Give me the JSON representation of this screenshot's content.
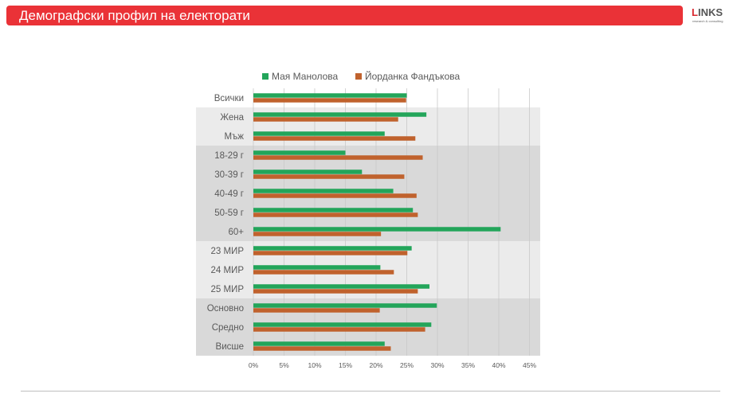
{
  "header": {
    "title": "Демографски профил на електорати"
  },
  "logo": {
    "brand_prefix": "L",
    "brand_rest": "INKS",
    "tagline": "research & consulting"
  },
  "colors": {
    "header": "#ea3237",
    "series_1": "#23a55a",
    "series_2": "#c0622d",
    "band_light": "#ebebeb",
    "band_dark": "#d9d9d9"
  },
  "chart_data": {
    "type": "bar",
    "orientation": "horizontal",
    "categories": [
      "Всички",
      "Жена",
      "Мъж",
      "18-29 г",
      "30-39 г",
      "40-49 г",
      "50-59 г",
      "60+",
      "23 МИР",
      "24 МИР",
      "25 МИР",
      "Основно",
      "Средно",
      "Висше"
    ],
    "category_groups": [
      {
        "shade": "none",
        "categories": [
          "Всички"
        ]
      },
      {
        "shade": "light",
        "categories": [
          "Жена",
          "Мъж"
        ]
      },
      {
        "shade": "dark",
        "categories": [
          "18-29 г",
          "30-39 г",
          "40-49 г",
          "50-59 г",
          "60+"
        ]
      },
      {
        "shade": "light",
        "categories": [
          "23 МИР",
          "24 МИР",
          "25 МИР"
        ]
      },
      {
        "shade": "dark",
        "categories": [
          "Основно",
          "Средно",
          "Висше"
        ]
      }
    ],
    "series": [
      {
        "name": "Мая Манолова",
        "color": "#23a55a",
        "values": [
          25,
          28.2,
          21.4,
          15,
          17.7,
          22.8,
          26,
          40.3,
          25.8,
          20.7,
          28.7,
          29.9,
          29,
          21.4
        ]
      },
      {
        "name": "Йорданка Фандъкова",
        "color": "#c0622d",
        "values": [
          24.9,
          23.6,
          26.4,
          27.6,
          24.6,
          26.6,
          26.8,
          20.8,
          25.1,
          22.9,
          26.8,
          20.6,
          28,
          22.4
        ]
      }
    ],
    "x_ticks": [
      "0%",
      "5%",
      "10%",
      "15%",
      "20%",
      "25%",
      "30%",
      "35%",
      "40%",
      "45%"
    ],
    "xlim": [
      0,
      45
    ],
    "x_unit": "%",
    "grid": "vertical",
    "legend": "top"
  }
}
